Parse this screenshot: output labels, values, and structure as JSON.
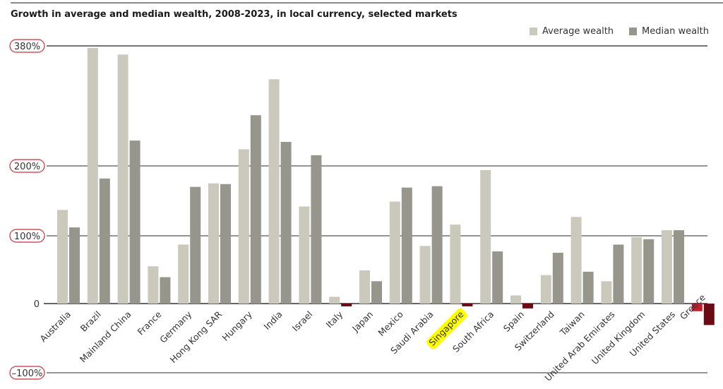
{
  "chart_data": {
    "type": "bar",
    "title": "Growth in average and median wealth, 2008-2023, in local currency, selected markets",
    "xlabel": "",
    "ylabel": "",
    "ylim": [
      -100,
      380
    ],
    "yticks": [
      {
        "value": 380,
        "label": "380%"
      },
      {
        "value": 200,
        "label": "200%"
      },
      {
        "value": 100,
        "label": "100%"
      },
      {
        "value": 0,
        "label": "0"
      },
      {
        "value": -100,
        "label": "–100%"
      }
    ],
    "legend_position": "top-right",
    "categories": [
      "Australia",
      "Brazil",
      "Mainland China",
      "France",
      "Germany",
      "Hong Kong SAR",
      "Hungary",
      "India",
      "Israel",
      "Italy",
      "Japan",
      "Mexico",
      "Saudi Arabia",
      "Singapore",
      "South Africa",
      "Spain",
      "Switzerland",
      "Taiwan",
      "United Arab Emirates",
      "United Kingdom",
      "United States",
      "Greece"
    ],
    "highlighted_category": "Singapore",
    "series": [
      {
        "name": "Average wealth",
        "color": "#cbc8bc",
        "negative_color": "#c0202a",
        "values": [
          137,
          377,
          367,
          55,
          87,
          175,
          225,
          330,
          142,
          10,
          49,
          149,
          85,
          116,
          194,
          12,
          42,
          127,
          33,
          98,
          108,
          -11
        ]
      },
      {
        "name": "Median wealth",
        "color": "#96968c",
        "negative_color": "#6b0a12",
        "values": [
          112,
          182,
          238,
          39,
          170,
          174,
          276,
          236,
          216,
          -4,
          33,
          169,
          171,
          -4,
          77,
          -7,
          75,
          47,
          87,
          95,
          108,
          -31
        ]
      }
    ]
  },
  "colors": {
    "tick_circle": "#c8323a",
    "highlight": "#ffff00"
  }
}
